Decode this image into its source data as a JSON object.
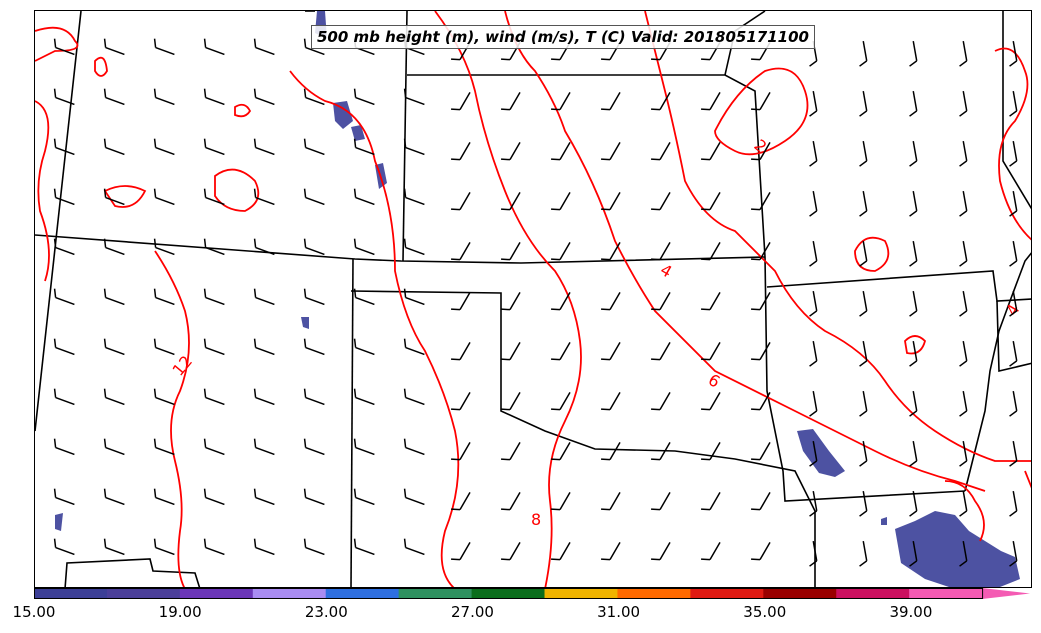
{
  "title": "500 mb height (m), wind (m/s), T (C) Valid: 201805171100",
  "contour_labels": [
    "12",
    "8",
    "4",
    "6",
    "2",
    "4"
  ],
  "colorbar": {
    "colors": [
      "#3c3f97",
      "#4b3f9a",
      "#6b36b8",
      "#a98cf2",
      "#2e6fe0",
      "#2f9160",
      "#0b6e1c",
      "#f0b400",
      "#ff6a00",
      "#e01a12",
      "#9a0000",
      "#cc1060",
      "#f45bb3"
    ],
    "extend_arrow_color": "#f45bb3",
    "tick_labels": [
      "15.00",
      "19.00",
      "23.00",
      "27.00",
      "31.00",
      "35.00",
      "39.00"
    ]
  },
  "style": {
    "temperature_contour_color": "#ff0000",
    "shading_color": "#3a3f98",
    "boundary_color": "#000000"
  }
}
